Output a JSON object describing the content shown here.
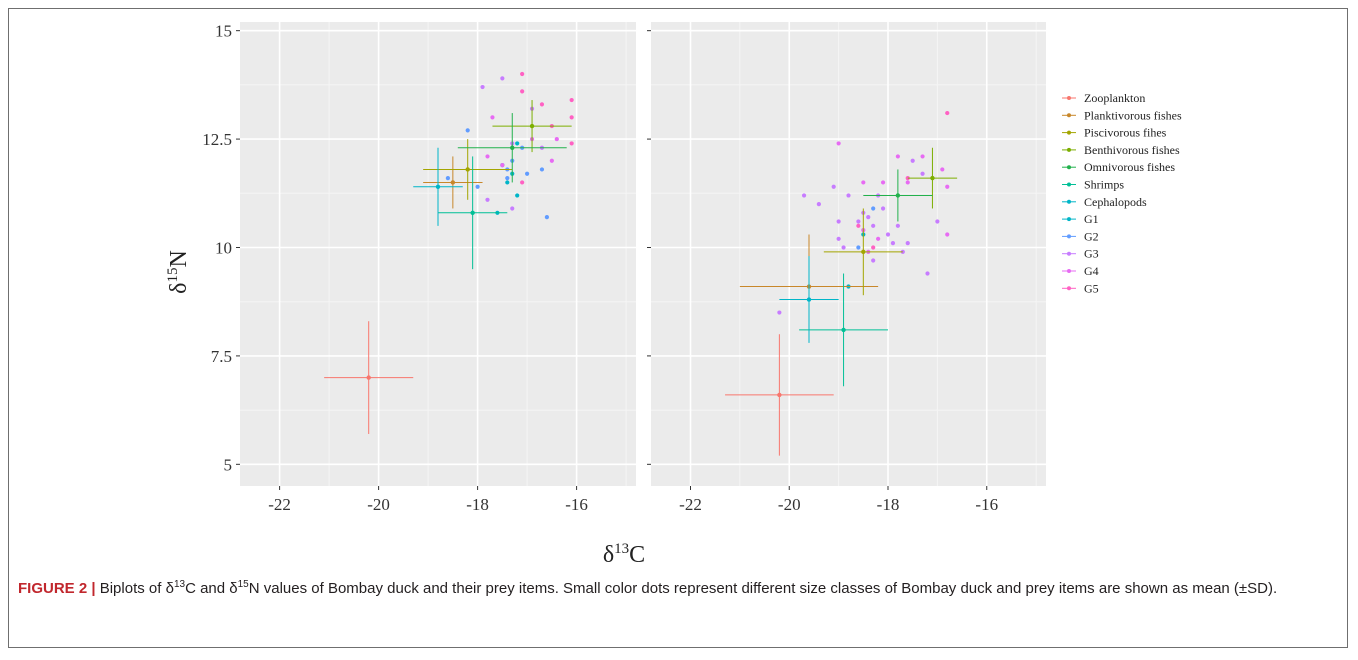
{
  "chart_data": [
    {
      "type": "scatter",
      "panel": "left",
      "xlabel": "δ13C",
      "ylabel": "δ15N",
      "xlim": [
        -22.8,
        -14.8
      ],
      "ylim": [
        4.5,
        15.2
      ],
      "xticks": [
        -22,
        -20,
        -18,
        -16
      ],
      "yticks": [
        5,
        7.5,
        10,
        12.5,
        15
      ],
      "ytick_labels": [
        "5",
        "7.5",
        "10",
        "12.5",
        "15"
      ],
      "xtick_labels": [
        "-22",
        "-20",
        "-18",
        "-16"
      ],
      "grid": true,
      "prey_means": [
        {
          "name": "Zooplankton",
          "x": -20.2,
          "y": 7.0,
          "xsd": 0.9,
          "ysd": 1.3
        },
        {
          "name": "Planktivorous fishes",
          "x": -18.5,
          "y": 11.5,
          "xsd": 0.6,
          "ysd": 0.6
        },
        {
          "name": "Piscivorous fihes",
          "x": -18.2,
          "y": 11.8,
          "xsd": 0.9,
          "ysd": 0.7
        },
        {
          "name": "Benthivorous fishes",
          "x": -16.9,
          "y": 12.8,
          "xsd": 0.8,
          "ysd": 0.6
        },
        {
          "name": "Omnivorous fishes",
          "x": -17.3,
          "y": 12.3,
          "xsd": 1.1,
          "ysd": 0.8
        },
        {
          "name": "Shrimps",
          "x": -18.1,
          "y": 10.8,
          "xsd": 0.7,
          "ysd": 1.3
        },
        {
          "name": "Cephalopods",
          "x": -18.8,
          "y": 11.4,
          "xsd": 0.5,
          "ysd": 0.9
        }
      ],
      "size_classes": [
        {
          "name": "G1",
          "points": [
            [
              -17.4,
              11.5
            ],
            [
              -17.2,
              11.2
            ],
            [
              -17.3,
              11.7
            ],
            [
              -17.5,
              11.9
            ],
            [
              -17.2,
              12.4
            ],
            [
              -17.6,
              10.8
            ]
          ]
        },
        {
          "name": "G2",
          "points": [
            [
              -18.2,
              12.7
            ],
            [
              -18.6,
              11.6
            ],
            [
              -18.0,
              11.4
            ],
            [
              -17.4,
              11.6
            ],
            [
              -17.1,
              12.3
            ],
            [
              -16.7,
              11.8
            ],
            [
              -16.6,
              10.7
            ],
            [
              -17.3,
              12.0
            ],
            [
              -17.4,
              11.8
            ],
            [
              -17.0,
              11.7
            ]
          ]
        },
        {
          "name": "G3",
          "points": [
            [
              -17.9,
              13.7
            ],
            [
              -17.5,
              13.9
            ],
            [
              -17.8,
              11.1
            ],
            [
              -17.3,
              10.9
            ],
            [
              -16.9,
              13.2
            ],
            [
              -16.7,
              12.3
            ],
            [
              -17.3,
              12.4
            ]
          ]
        },
        {
          "name": "G4",
          "points": [
            [
              -17.7,
              13.0
            ],
            [
              -16.9,
              12.5
            ],
            [
              -16.4,
              12.5
            ],
            [
              -17.8,
              12.1
            ],
            [
              -16.5,
              12.0
            ],
            [
              -17.5,
              11.9
            ]
          ]
        },
        {
          "name": "G5",
          "points": [
            [
              -17.1,
              14.0
            ],
            [
              -17.1,
              13.6
            ],
            [
              -16.7,
              13.3
            ],
            [
              -16.1,
              13.4
            ],
            [
              -16.1,
              13.0
            ],
            [
              -16.1,
              12.4
            ],
            [
              -16.5,
              12.8
            ],
            [
              -17.1,
              11.5
            ]
          ]
        }
      ]
    },
    {
      "type": "scatter",
      "panel": "right",
      "xlim": [
        -22.8,
        -14.8
      ],
      "ylim": [
        4.5,
        15.2
      ],
      "xticks": [
        -22,
        -20,
        -18,
        -16
      ],
      "xtick_labels": [
        "-22",
        "-20",
        "-18",
        "-16"
      ],
      "grid": true,
      "prey_means": [
        {
          "name": "Zooplankton",
          "x": -20.2,
          "y": 6.6,
          "xsd": 1.1,
          "ysd": 1.4
        },
        {
          "name": "Planktivorous fishes",
          "x": -19.6,
          "y": 9.1,
          "xsd": 1.4,
          "ysd": 1.2
        },
        {
          "name": "Piscivorous fihes",
          "x": -18.5,
          "y": 9.9,
          "xsd": 0.8,
          "ysd": 1.0
        },
        {
          "name": "Benthivorous fishes",
          "x": -17.1,
          "y": 11.6,
          "xsd": 0.5,
          "ysd": 0.7
        },
        {
          "name": "Omnivorous fishes",
          "x": -17.8,
          "y": 11.2,
          "xsd": 0.7,
          "ysd": 0.6
        },
        {
          "name": "Shrimps",
          "x": -18.9,
          "y": 8.1,
          "xsd": 0.9,
          "ysd": 1.3
        },
        {
          "name": "Cephalopods",
          "x": -19.6,
          "y": 8.8,
          "xsd": 0.6,
          "ysd": 1.0
        }
      ],
      "size_classes": [
        {
          "name": "G1",
          "points": [
            [
              -18.5,
              10.3
            ],
            [
              -18.8,
              9.1
            ]
          ]
        },
        {
          "name": "G2",
          "points": [
            [
              -18.6,
              10.0
            ],
            [
              -18.3,
              10.9
            ]
          ]
        },
        {
          "name": "G3",
          "points": [
            [
              -19.7,
              11.2
            ],
            [
              -19.4,
              11.0
            ],
            [
              -19.1,
              11.4
            ],
            [
              -18.8,
              11.2
            ],
            [
              -18.5,
              10.8
            ],
            [
              -18.3,
              10.5
            ],
            [
              -18.2,
              11.2
            ],
            [
              -18.0,
              10.3
            ],
            [
              -17.8,
              10.5
            ],
            [
              -17.6,
              10.1
            ],
            [
              -19.0,
              10.2
            ],
            [
              -18.9,
              10.0
            ],
            [
              -18.6,
              10.6
            ],
            [
              -18.4,
              10.7
            ],
            [
              -17.5,
              12.0
            ],
            [
              -17.2,
              9.4
            ],
            [
              -17.0,
              10.6
            ],
            [
              -20.2,
              8.5
            ],
            [
              -19.0,
              10.6
            ],
            [
              -18.3,
              9.7
            ],
            [
              -17.9,
              10.1
            ],
            [
              -17.7,
              9.9
            ],
            [
              -18.1,
              10.9
            ],
            [
              -17.3,
              11.7
            ]
          ]
        },
        {
          "name": "G4",
          "points": [
            [
              -19.0,
              12.4
            ],
            [
              -18.5,
              11.5
            ],
            [
              -18.1,
              11.5
            ],
            [
              -17.8,
              12.1
            ],
            [
              -17.3,
              12.1
            ],
            [
              -16.8,
              10.3
            ],
            [
              -16.8,
              11.4
            ],
            [
              -16.9,
              11.8
            ],
            [
              -17.6,
              11.5
            ],
            [
              -18.5,
              10.4
            ],
            [
              -18.2,
              10.2
            ],
            [
              -18.4,
              9.9
            ]
          ]
        },
        {
          "name": "G5",
          "points": [
            [
              -16.8,
              13.1
            ],
            [
              -17.6,
              11.6
            ],
            [
              -18.6,
              10.5
            ],
            [
              -18.3,
              10.0
            ]
          ]
        }
      ]
    }
  ],
  "axis_titles": {
    "x_base": "δ",
    "x_sup": "13",
    "x_elem": "C",
    "y_base": "δ",
    "y_sup": "15",
    "y_elem": "N"
  },
  "legend": [
    {
      "label": "Zooplankton",
      "color": "#F8766D"
    },
    {
      "label": "Planktivorous fishes",
      "color": "#D89000"
    },
    {
      "label": "Piscivorous fihes",
      "color": "#A3A500"
    },
    {
      "label": "Benthivorous fishes",
      "color": "#39B600"
    },
    {
      "label": "Omnivorous fishes",
      "color": "#00BF7D"
    },
    {
      "label": "Shrimps",
      "color": "#00BFC4"
    },
    {
      "label": "Cephalopods",
      "color": "#00B0F6"
    },
    {
      "label": "G1",
      "color": "#00A5FF"
    },
    {
      "label": "G2",
      "color": "#9590FF"
    },
    {
      "label": "G3",
      "color": "#E76BF3"
    },
    {
      "label": "G4",
      "color": "#FF62BC"
    },
    {
      "label": "G5",
      "color": "#F8766D"
    }
  ],
  "colors": {
    "Zooplankton": "#F8766D",
    "Planktivorous fishes": "#C8872A",
    "Piscivorous fihes": "#A3A500",
    "Benthivorous fishes": "#7CAE00",
    "Omnivorous fishes": "#22B14C",
    "Shrimps": "#00BF96",
    "Cephalopods": "#00B5C8",
    "G1": "#00B5C8",
    "G2": "#619CFF",
    "G3": "#C77CFF",
    "G4": "#E76BF3",
    "G5": "#FF61C3"
  },
  "caption": {
    "figure_label": "FIGURE 2 |",
    "part1": " Biplots of δ",
    "sup1": "13",
    "part2": "C and δ",
    "sup2": "15",
    "part3": "N values of Bombay duck and their prey items. Small color dots represent different size classes of Bombay duck and prey items are shown as mean (±SD)."
  }
}
